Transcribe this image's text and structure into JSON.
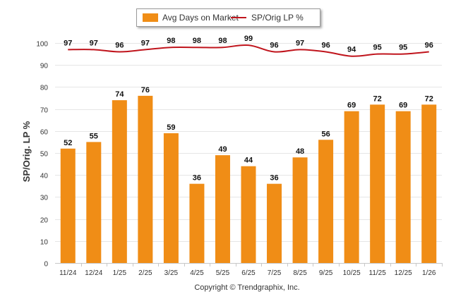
{
  "legend": {
    "bar_label": "Avg Days on Market",
    "line_label": "SP/Orig LP %"
  },
  "copyright": "Copyright © Trendgraphix, Inc.",
  "colors": {
    "bar": "#f08d16",
    "line": "#c0141c",
    "grid": "#e6e6e6",
    "axis_text": "#333333"
  },
  "chart_data": {
    "type": "bar",
    "title": "",
    "xlabel": "",
    "ylabel": "SP/Orig. LP %",
    "ylim": [
      0,
      100
    ],
    "yticks": [
      0,
      10,
      20,
      30,
      40,
      50,
      60,
      70,
      80,
      90,
      100
    ],
    "grid": true,
    "legend_position": "top-center",
    "categories": [
      "11/24",
      "12/24",
      "1/25",
      "2/25",
      "3/25",
      "4/25",
      "5/25",
      "6/25",
      "7/25",
      "8/25",
      "9/25",
      "10/25",
      "11/25",
      "12/25",
      "1/26"
    ],
    "series": [
      {
        "name": "Avg Days on Market",
        "type": "bar",
        "values": [
          52,
          55,
          74,
          76,
          59,
          36,
          49,
          44,
          36,
          48,
          56,
          69,
          72,
          69,
          72
        ]
      },
      {
        "name": "SP/Orig LP %",
        "type": "line",
        "values": [
          97,
          97,
          96,
          97,
          98,
          98,
          98,
          99,
          96,
          97,
          96,
          94,
          95,
          95,
          96
        ]
      }
    ]
  }
}
